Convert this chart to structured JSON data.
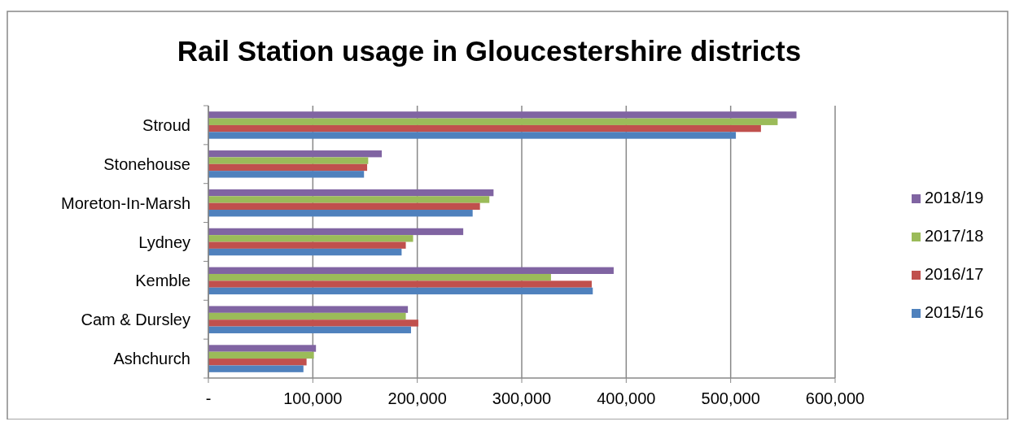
{
  "chart_data": {
    "type": "bar",
    "orientation": "horizontal",
    "title": "Rail Station usage in Gloucestershire districts",
    "categories": [
      "Stroud",
      "Stonehouse",
      "Moreton-In-Marsh",
      "Lydney",
      "Kemble",
      "Cam & Dursley",
      "Ashchurch"
    ],
    "series": [
      {
        "name": "2018/19",
        "color": "#8064a2",
        "values": [
          563000,
          166000,
          273000,
          244000,
          388000,
          191000,
          103000
        ]
      },
      {
        "name": "2017/18",
        "color": "#9bbb59",
        "values": [
          545000,
          153000,
          269000,
          196000,
          328000,
          189000,
          101000
        ]
      },
      {
        "name": "2016/17",
        "color": "#c0504d",
        "values": [
          529000,
          152000,
          260000,
          189000,
          367000,
          201000,
          94000
        ]
      },
      {
        "name": "2015/16",
        "color": "#4f81bd",
        "values": [
          505000,
          149000,
          253000,
          185000,
          368000,
          194000,
          91000
        ]
      }
    ],
    "xlim": [
      0,
      600000
    ],
    "xticks": [
      {
        "value": 0,
        "label": "-"
      },
      {
        "value": 100000,
        "label": "100,000"
      },
      {
        "value": 200000,
        "label": "200,000"
      },
      {
        "value": 300000,
        "label": "300,000"
      },
      {
        "value": 400000,
        "label": "400,000"
      },
      {
        "value": 500000,
        "label": "500,000"
      },
      {
        "value": 600000,
        "label": "600,000"
      }
    ],
    "grid": "x",
    "legend": "right"
  }
}
